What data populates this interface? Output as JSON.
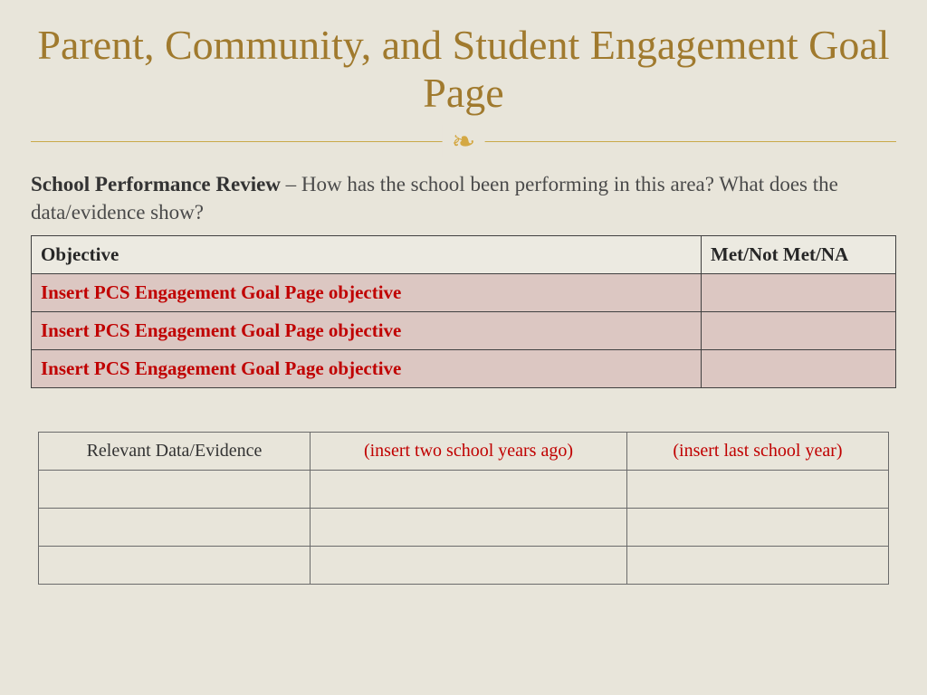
{
  "title": "Parent, Community, and Student Engagement Goal Page",
  "ornament": "❧",
  "intro": {
    "bold": "School Performance Review",
    "rest": " – How has the school been performing in this area? What does the data/evidence show?"
  },
  "objectives_table": {
    "headers": {
      "objective": "Objective",
      "met": "Met/Not Met/NA"
    },
    "rows": [
      {
        "objective": "Insert PCS Engagement Goal Page objective",
        "met": ""
      },
      {
        "objective": "Insert PCS Engagement Goal Page objective",
        "met": ""
      },
      {
        "objective": "Insert PCS Engagement Goal Page objective",
        "met": ""
      }
    ]
  },
  "evidence_table": {
    "headers": {
      "label": "Relevant Data/Evidence",
      "year1": "(insert two school years ago)",
      "year2": "(insert last school year)"
    },
    "rows": [
      {
        "label": "",
        "year1": "",
        "year2": ""
      },
      {
        "label": "",
        "year1": "",
        "year2": ""
      },
      {
        "label": "",
        "year1": "",
        "year2": ""
      }
    ]
  },
  "colors": {
    "background": "#e8e5da",
    "title": "#a07a2e",
    "accent_line": "#c9a94a",
    "ornament": "#d4a843",
    "body_text": "#4a4a4a",
    "placeholder_red": "#c00000",
    "row_fill": "#dcc7c2",
    "header_fill": "#eceae1",
    "border_dark": "#404040",
    "border_light": "#6b6b6b"
  }
}
